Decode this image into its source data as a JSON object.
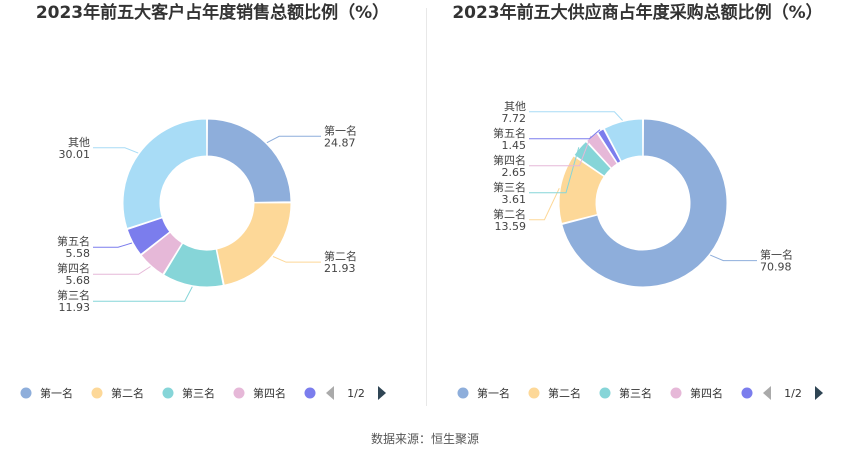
{
  "chart_data": [
    {
      "type": "pie",
      "title": "2023年前五大客户占年度销售总额比例（%）",
      "categories": [
        "第一名",
        "第二名",
        "第三名",
        "第四名",
        "第五名",
        "其他"
      ],
      "values": [
        24.87,
        21.93,
        11.93,
        5.68,
        5.58,
        30.01
      ],
      "value_labels": [
        "24.87",
        "21.93",
        "11.93",
        "5.68",
        "5.58",
        "30.01"
      ],
      "colors": [
        "#8eaedb",
        "#fdd898",
        "#86d5d8",
        "#e6b8d8",
        "#7b7ded",
        "#a8dcf6"
      ],
      "legend_items": [
        "第一名",
        "第二名",
        "第三名",
        "第四名"
      ],
      "legend_page": "1/2",
      "legend_position": "bottom"
    },
    {
      "type": "pie",
      "title": "2023年前五大供应商占年度采购总额比例（%）",
      "categories": [
        "第一名",
        "第二名",
        "第三名",
        "第四名",
        "第五名",
        "其他"
      ],
      "values": [
        70.98,
        13.59,
        3.61,
        2.65,
        1.45,
        7.72
      ],
      "value_labels": [
        "70.98",
        "13.59",
        "3.61",
        "2.65",
        "1.45",
        "7.72"
      ],
      "colors": [
        "#8eaedb",
        "#fdd898",
        "#86d5d8",
        "#e6b8d8",
        "#7b7ded",
        "#a8dcf6"
      ],
      "legend_items": [
        "第一名",
        "第二名",
        "第三名",
        "第四名"
      ],
      "legend_page": "1/2",
      "legend_position": "bottom"
    }
  ],
  "source": "数据来源：恒生聚源"
}
